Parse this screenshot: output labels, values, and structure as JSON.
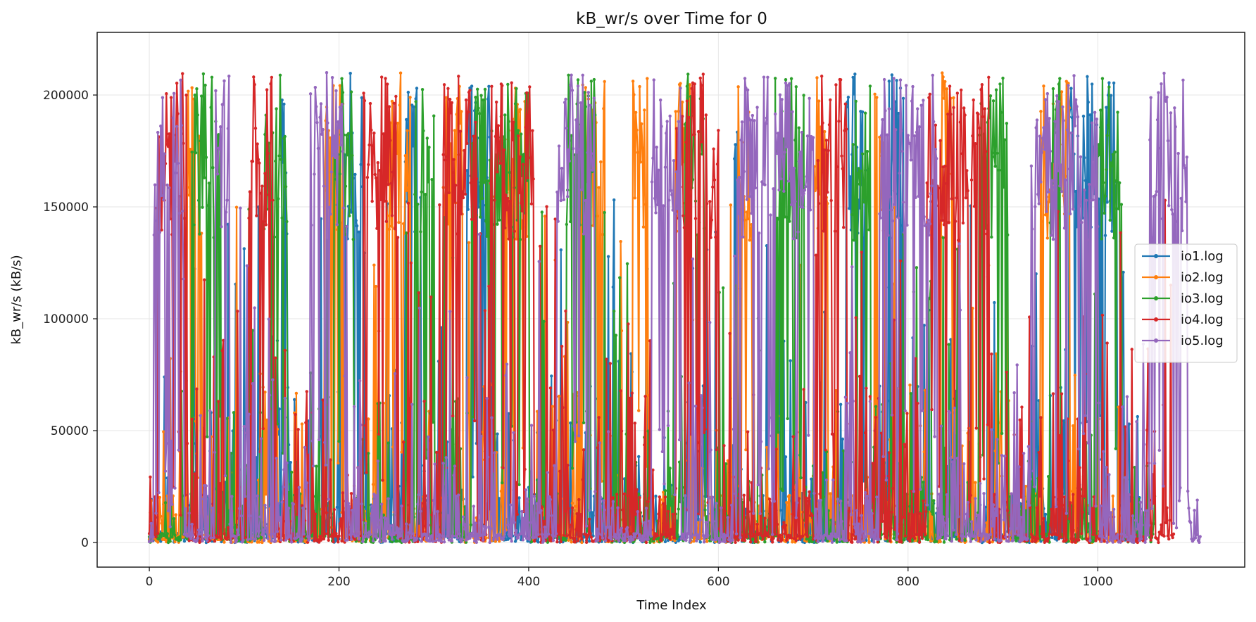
{
  "chart_data": {
    "type": "line",
    "title": "kB_wr/s over Time for 0",
    "xlabel": "Time Index",
    "ylabel": "kB_wr/s (kB/s)",
    "xlim": [
      -55,
      1155
    ],
    "ylim": [
      -11000,
      228000
    ],
    "grid": true,
    "legend_position": "right-center",
    "x_ticks": [
      {
        "value": 0,
        "label": "0"
      },
      {
        "value": 200,
        "label": "200"
      },
      {
        "value": 400,
        "label": "400"
      },
      {
        "value": 600,
        "label": "600"
      },
      {
        "value": 800,
        "label": "800"
      },
      {
        "value": 1000,
        "label": "1000"
      }
    ],
    "y_ticks": [
      {
        "value": 0,
        "label": "0"
      },
      {
        "value": 50000,
        "label": "50000"
      },
      {
        "value": 100000,
        "label": "100000"
      },
      {
        "value": 150000,
        "label": "150000"
      },
      {
        "value": 200000,
        "label": "200000"
      }
    ],
    "series": [
      {
        "name": "io1.log",
        "color": "#1f77b4",
        "seed": 11,
        "x_end": 1045,
        "active_ranges": [
          [
            140,
            145
          ],
          [
            205,
            225
          ],
          [
            270,
            282
          ],
          [
            335,
            360
          ],
          [
            615,
            620
          ],
          [
            735,
            755
          ],
          [
            780,
            795
          ],
          [
            970,
            1020
          ]
        ]
      },
      {
        "name": "io2.log",
        "color": "#ff7f0e",
        "seed": 23,
        "x_end": 1040,
        "active_ranges": [
          [
            40,
            55
          ],
          [
            185,
            205
          ],
          [
            250,
            275
          ],
          [
            310,
            330
          ],
          [
            375,
            400
          ],
          [
            455,
            480
          ],
          [
            510,
            525
          ],
          [
            555,
            570
          ],
          [
            620,
            635
          ],
          [
            700,
            715
          ],
          [
            765,
            775
          ],
          [
            835,
            850
          ],
          [
            940,
            970
          ]
        ]
      },
      {
        "name": "io3.log",
        "color": "#2ca02c",
        "seed": 37,
        "x_end": 1060,
        "active_ranges": [
          [
            45,
            75
          ],
          [
            120,
            145
          ],
          [
            195,
            215
          ],
          [
            280,
            300
          ],
          [
            340,
            400
          ],
          [
            440,
            470
          ],
          [
            565,
            585
          ],
          [
            660,
            690
          ],
          [
            740,
            760
          ],
          [
            875,
            905
          ],
          [
            950,
            960
          ],
          [
            1000,
            1025
          ]
        ]
      },
      {
        "name": "io4.log",
        "color": "#d62728",
        "seed": 41,
        "x_end": 1080,
        "active_ranges": [
          [
            10,
            40
          ],
          [
            105,
            130
          ],
          [
            225,
            260
          ],
          [
            310,
            345
          ],
          [
            360,
            405
          ],
          [
            555,
            600
          ],
          [
            705,
            735
          ],
          [
            820,
            885
          ]
        ]
      },
      {
        "name": "io5.log",
        "color": "#9467bd",
        "seed": 53,
        "x_end": 1108,
        "active_ranges": [
          [
            5,
            35
          ],
          [
            70,
            85
          ],
          [
            170,
            205
          ],
          [
            430,
            470
          ],
          [
            530,
            560
          ],
          [
            620,
            700
          ],
          [
            770,
            830
          ],
          [
            930,
            1000
          ],
          [
            1055,
            1095
          ]
        ]
      }
    ]
  }
}
